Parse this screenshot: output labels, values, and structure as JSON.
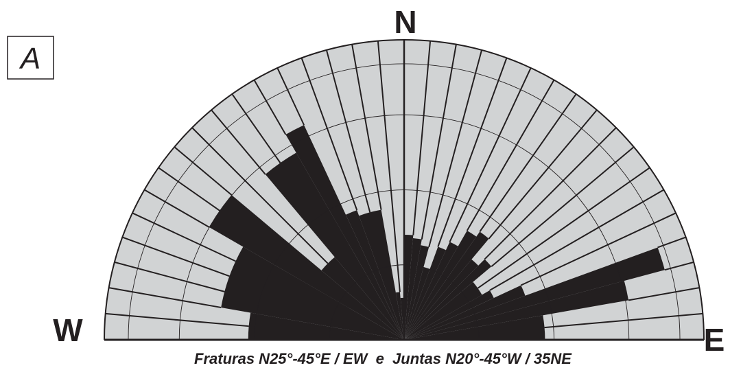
{
  "chart_data": {
    "type": "rose",
    "panel_label": "A",
    "direction_labels": {
      "north": "N",
      "west": "W",
      "east": "E"
    },
    "caption": "Fraturas N25°-45°E / EW  e  Juntas N20°-45°W / 35NE",
    "orientation_range_deg": [
      -90,
      90
    ],
    "sector_width_deg": 5,
    "radial_max": 1.0,
    "gridline_radii": [
      0.1,
      0.25,
      0.5,
      0.75,
      0.92,
      1.0
    ],
    "colors": {
      "background_petal": "#d1d3d4",
      "petal": "#231f20",
      "lines": "#231f20"
    },
    "petals": [
      {
        "from_deg": -90,
        "to_deg": -80,
        "value": 0.52
      },
      {
        "from_deg": -80,
        "to_deg": -60,
        "value": 0.62
      },
      {
        "from_deg": -60,
        "to_deg": -50,
        "value": 0.75
      },
      {
        "from_deg": -50,
        "to_deg": -40,
        "value": 0.36
      },
      {
        "from_deg": -40,
        "to_deg": -30,
        "value": 0.72
      },
      {
        "from_deg": -30,
        "to_deg": -25,
        "value": 0.79
      },
      {
        "from_deg": -25,
        "to_deg": -20,
        "value": 0.46
      },
      {
        "from_deg": -20,
        "to_deg": -10,
        "value": 0.44
      },
      {
        "from_deg": -10,
        "to_deg": -5,
        "value": 0.16
      },
      {
        "from_deg": -5,
        "to_deg": 0,
        "value": 0.14
      },
      {
        "from_deg": 0,
        "to_deg": 5,
        "value": 0.35
      },
      {
        "from_deg": 5,
        "to_deg": 10,
        "value": 0.34
      },
      {
        "from_deg": 10,
        "to_deg": 15,
        "value": 0.32
      },
      {
        "from_deg": 15,
        "to_deg": 20,
        "value": 0.25
      },
      {
        "from_deg": 20,
        "to_deg": 25,
        "value": 0.33
      },
      {
        "from_deg": 25,
        "to_deg": 30,
        "value": 0.36
      },
      {
        "from_deg": 30,
        "to_deg": 35,
        "value": 0.42
      },
      {
        "from_deg": 35,
        "to_deg": 40,
        "value": 0.44
      },
      {
        "from_deg": 40,
        "to_deg": 45,
        "value": 0.35
      },
      {
        "from_deg": 45,
        "to_deg": 50,
        "value": 0.38
      },
      {
        "from_deg": 50,
        "to_deg": 60,
        "value": 0.3
      },
      {
        "from_deg": 60,
        "to_deg": 65,
        "value": 0.33
      },
      {
        "from_deg": 65,
        "to_deg": 70,
        "value": 0.43
      },
      {
        "from_deg": 70,
        "to_deg": 75,
        "value": 0.9
      },
      {
        "from_deg": 75,
        "to_deg": 80,
        "value": 0.76
      },
      {
        "from_deg": 80,
        "to_deg": 90,
        "value": 0.47
      }
    ]
  }
}
